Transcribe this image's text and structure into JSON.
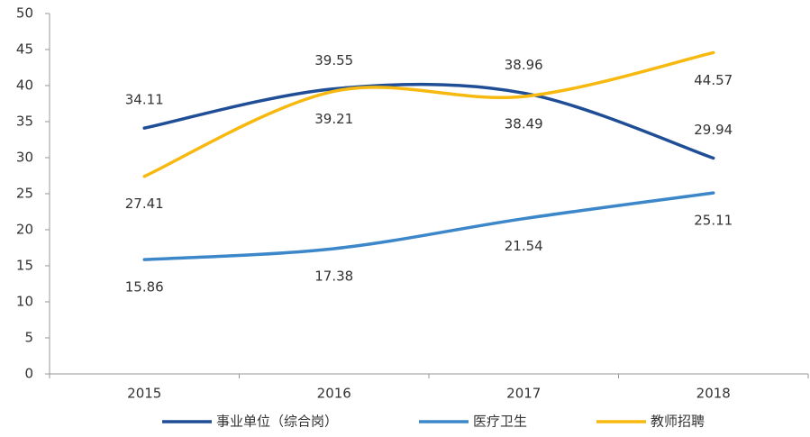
{
  "chart_data": {
    "type": "line",
    "categories": [
      "2015",
      "2016",
      "2017",
      "2018"
    ],
    "series": [
      {
        "name": "事业单位（综合岗）",
        "color": "#1f4e96",
        "values": [
          34.11,
          39.55,
          38.96,
          29.94
        ]
      },
      {
        "name": "医疗卫生",
        "color": "#3c87c9",
        "values": [
          15.86,
          17.38,
          21.54,
          25.11
        ]
      },
      {
        "name": "教师招聘",
        "color": "#f7b90f",
        "values": [
          27.41,
          39.21,
          38.49,
          44.57
        ]
      }
    ],
    "ylim": [
      0,
      50
    ],
    "yticks": [
      0,
      5,
      10,
      15,
      20,
      25,
      30,
      35,
      40,
      45,
      50
    ],
    "grid": false,
    "smooth": true,
    "legend": "bottom"
  }
}
